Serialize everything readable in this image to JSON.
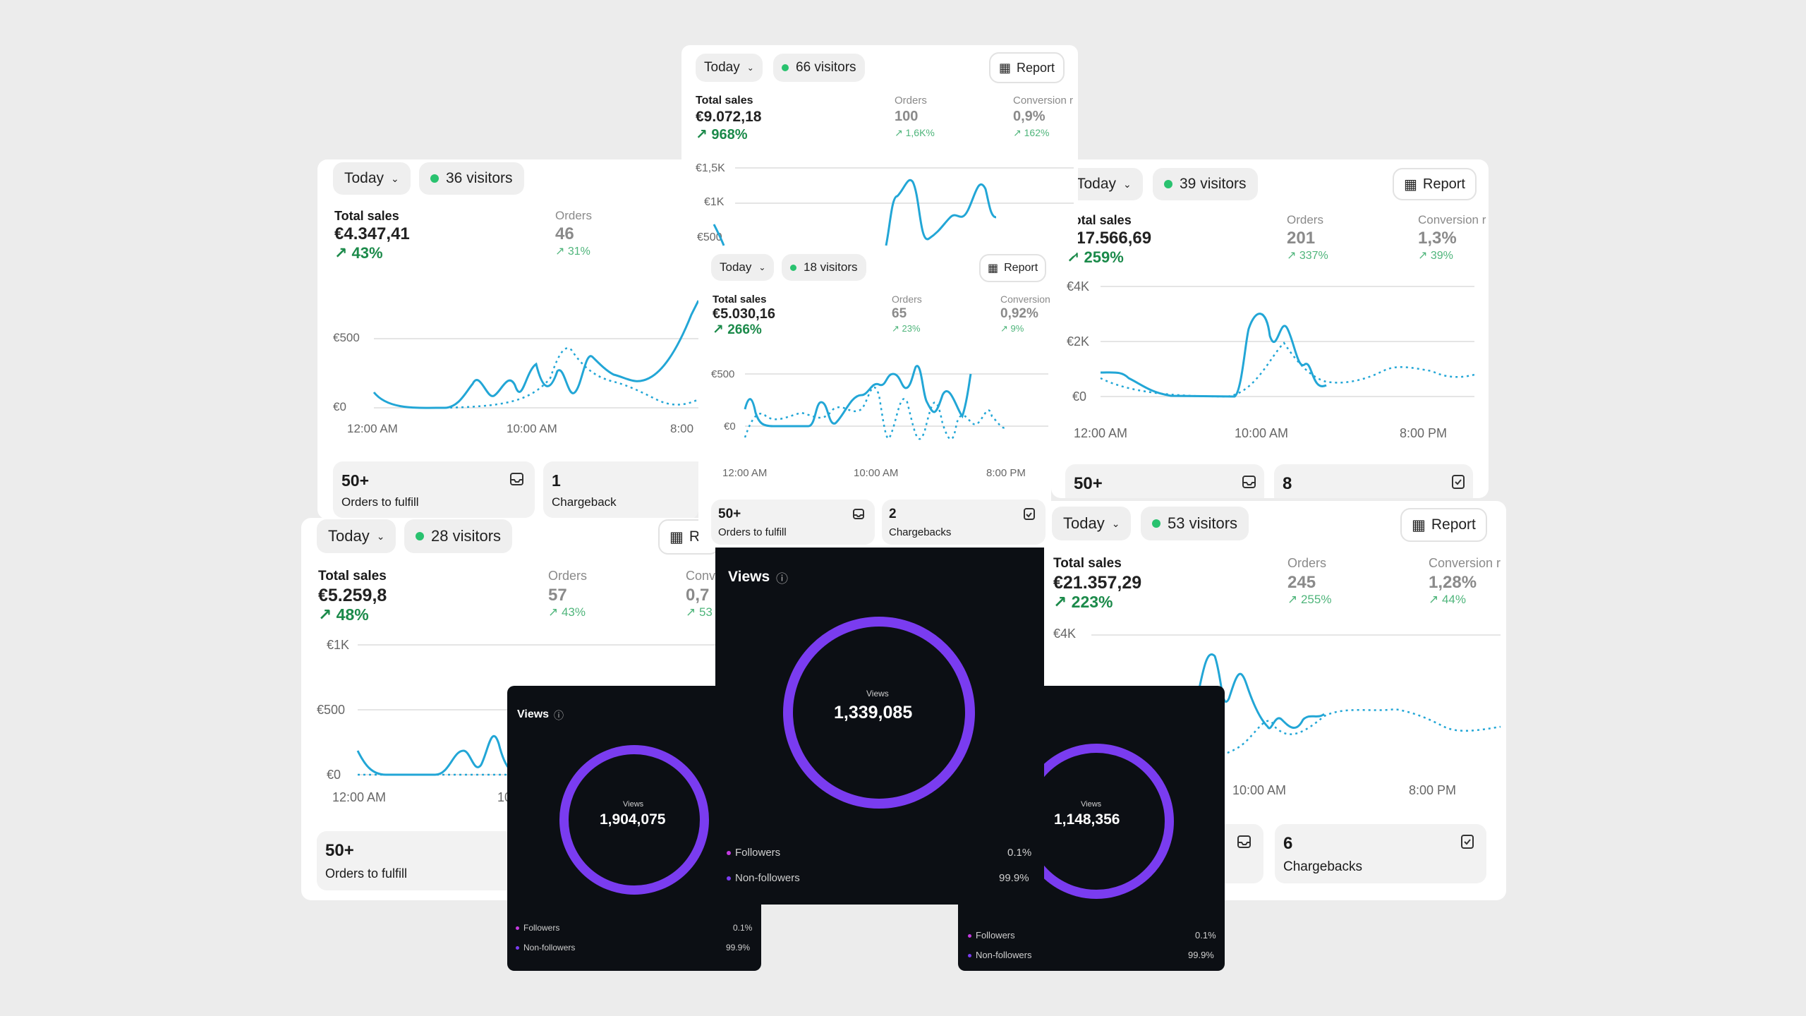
{
  "colors": {
    "background": "#ececec",
    "line": "#22a6d6",
    "growth": "#1b8a4a",
    "live_dot": "#29c26f",
    "ring": "#7a3cf0",
    "followers_dot": "#c43be0",
    "non_followers_dot": "#7a3cf0"
  },
  "dash_a": {
    "period": "Today",
    "visitors": "36 visitors",
    "total_sales_label": "Total sales",
    "total_sales": "€4.347,41",
    "total_growth": "43%",
    "orders_label": "Orders",
    "orders": "46",
    "orders_growth": "31%",
    "y_axis": [
      "€500",
      "€0"
    ],
    "x_axis": [
      "12:00 AM",
      "10:00 AM",
      "8:00"
    ],
    "tile1_value": "50+",
    "tile1_label": "Orders to fulfill",
    "tile2_value": "1",
    "tile2_label": "Chargeback"
  },
  "dash_b": {
    "period": "Today",
    "visitors": "66 visitors",
    "report": "Report",
    "total_sales_label": "Total sales",
    "total_sales": "€9.072,18",
    "total_growth": "968%",
    "orders_label": "Orders",
    "orders": "100",
    "orders_growth": "1,6K%",
    "conversion_label": "Conversion r",
    "conversion": "0,9%",
    "conversion_growth": "162%",
    "y_axis": [
      "€1,5K",
      "€1K",
      "€500"
    ]
  },
  "dash_c": {
    "period": "Today",
    "visitors": "18 visitors",
    "report": "Report",
    "total_sales_label": "Total sales",
    "total_sales": "€5.030,16",
    "total_growth": "266%",
    "orders_label": "Orders",
    "orders": "65",
    "orders_growth": "23%",
    "conversion_label": "Conversion r",
    "conversion": "0,92%",
    "conversion_growth": "9%",
    "y_axis": [
      "€500",
      "€0"
    ],
    "x_axis": [
      "12:00 AM",
      "10:00 AM",
      "8:00 PM"
    ],
    "tile1_value": "50+",
    "tile1_label": "Orders to fulfill",
    "tile2_value": "2",
    "tile2_label": "Chargebacks"
  },
  "dash_d": {
    "period": "Today",
    "visitors": "39 visitors",
    "report": "Report",
    "total_sales_label": "Total sales",
    "total_sales": "€17.566,69",
    "total_growth": "259%",
    "orders_label": "Orders",
    "orders": "201",
    "orders_growth": "337%",
    "conversion_label": "Conversion r",
    "conversion": "1,3%",
    "conversion_growth": "39%",
    "y_axis": [
      "€4K",
      "€2K",
      "€0"
    ],
    "x_axis": [
      "12:00 AM",
      "10:00 AM",
      "8:00 PM"
    ],
    "tile1_value": "50+",
    "tile2_value": "8"
  },
  "dash_e": {
    "period": "Today",
    "visitors": "28 visitors",
    "report": "Re",
    "total_sales_label": "Total sales",
    "total_sales": "€5.259,8",
    "total_growth": "48%",
    "orders_label": "Orders",
    "orders": "57",
    "orders_growth": "43%",
    "conversion_label": "Conv",
    "conversion": "0,7",
    "conversion_growth": "53",
    "y_axis": [
      "€1K",
      "€500",
      "€0"
    ],
    "x_axis": [
      "12:00 AM",
      "10"
    ],
    "tile1_value": "50+",
    "tile1_label": "Orders to fulfill"
  },
  "dash_f": {
    "period": "Today",
    "visitors": "53 visitors",
    "report": "Report",
    "total_sales_label": "Total sales",
    "total_sales": "€21.357,29",
    "total_growth": "223%",
    "orders_label": "Orders",
    "orders": "245",
    "orders_growth": "255%",
    "conversion_label": "Conversion r",
    "conversion": "1,28%",
    "conversion_growth": "44%",
    "y_axis": [
      "€4K"
    ],
    "x_axis": [
      "10:00 AM",
      "8:00 PM"
    ],
    "tile2_value": "6",
    "tile2_label": "Chargebacks"
  },
  "views_center": {
    "title": "Views",
    "inner_label": "Views",
    "value": "1,339,085",
    "followers_label": "Followers",
    "followers_pct": "0.1%",
    "non_followers_label": "Non-followers",
    "non_followers_pct": "99.9%"
  },
  "views_left": {
    "title": "Views",
    "inner_label": "Views",
    "value": "1,904,075",
    "followers_label": "Followers",
    "followers_pct": "0.1%",
    "non_followers_label": "Non-followers",
    "non_followers_pct": "99.9%"
  },
  "views_right": {
    "inner_label": "Views",
    "value": "1,148,356",
    "followers_label": "Followers",
    "followers_pct": "0.1%",
    "non_followers_label": "Non-followers",
    "non_followers_pct": "99.9%"
  }
}
